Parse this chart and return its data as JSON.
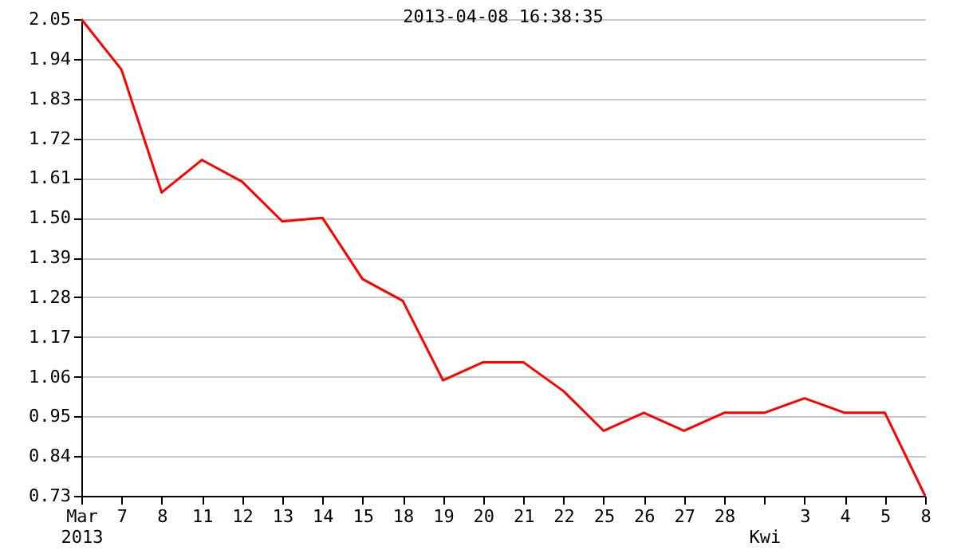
{
  "chart_data": {
    "type": "line",
    "title": "2013-04-08 16:38:35",
    "categories": [
      "Mar\n2013",
      "7",
      "8",
      "11",
      "12",
      "13",
      "14",
      "15",
      "18",
      "19",
      "20",
      "21",
      "22",
      "25",
      "26",
      "27",
      "28",
      "\nKwi",
      "3",
      "4",
      "5",
      "8"
    ],
    "series": [
      {
        "color": "#ff0000",
        "values": [
          2.05,
          1.91,
          1.57,
          1.66,
          1.6,
          1.49,
          1.5,
          1.33,
          1.27,
          1.05,
          1.1,
          1.1,
          1.02,
          0.91,
          0.96,
          0.91,
          0.96,
          0.96,
          1.0,
          0.96,
          0.96,
          0.73
        ]
      }
    ],
    "ylim": [
      0.73,
      2.05
    ],
    "yticks": [
      0.73,
      0.84,
      0.95,
      1.06,
      1.17,
      1.28,
      1.39,
      {
        "value": 1.5,
        "label": "1.50"
      },
      1.61,
      1.72,
      1.83,
      1.94,
      2.05
    ],
    "grid": "y",
    "marker": "none",
    "line_style": "solid"
  }
}
